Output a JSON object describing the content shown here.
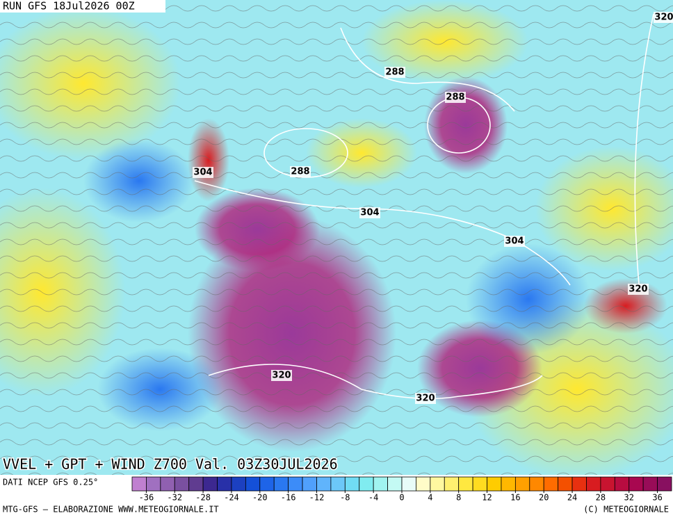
{
  "header": {
    "run": "RUN GFS 18Jul2026 00Z"
  },
  "map": {
    "title": "VVEL + GPT + WIND Z700 Val. 03Z30JUL2026",
    "contour_labels": [
      320,
      288,
      288,
      304,
      288,
      304,
      304,
      320,
      320,
      320
    ]
  },
  "colorbar": {
    "source": "DATI NCEP GFS 0.25°",
    "lim": [
      -38,
      38
    ],
    "ticks": [
      -36,
      -32,
      -28,
      -24,
      -20,
      -16,
      -12,
      -8,
      -4,
      0,
      4,
      8,
      12,
      16,
      20,
      24,
      28,
      32,
      36
    ],
    "colors": [
      "#c080d0",
      "#a070c0",
      "#9060b0",
      "#7a50a0",
      "#603c90",
      "#3c2890",
      "#2830a8",
      "#1c40c0",
      "#1450d8",
      "#1e64e8",
      "#2a78f0",
      "#3c8cf8",
      "#50a0fc",
      "#60b4fc",
      "#6cc8f8",
      "#70dcf4",
      "#80ecf0",
      "#a0f4f0",
      "#c4faf4",
      "#e8fcf8",
      "#fffcc8",
      "#fff8a0",
      "#fff070",
      "#ffe840",
      "#ffdc20",
      "#ffcc00",
      "#ffb800",
      "#ffa000",
      "#ff8800",
      "#ff6c00",
      "#f45000",
      "#e83010",
      "#d81c20",
      "#c81430",
      "#b80c40",
      "#a80850",
      "#980c58",
      "#881060"
    ]
  },
  "footer": {
    "left": "MTG-GFS — ELABORAZIONE WWW.METEOGIORNALE.IT",
    "right": "(C) METEOGIORNALE"
  }
}
